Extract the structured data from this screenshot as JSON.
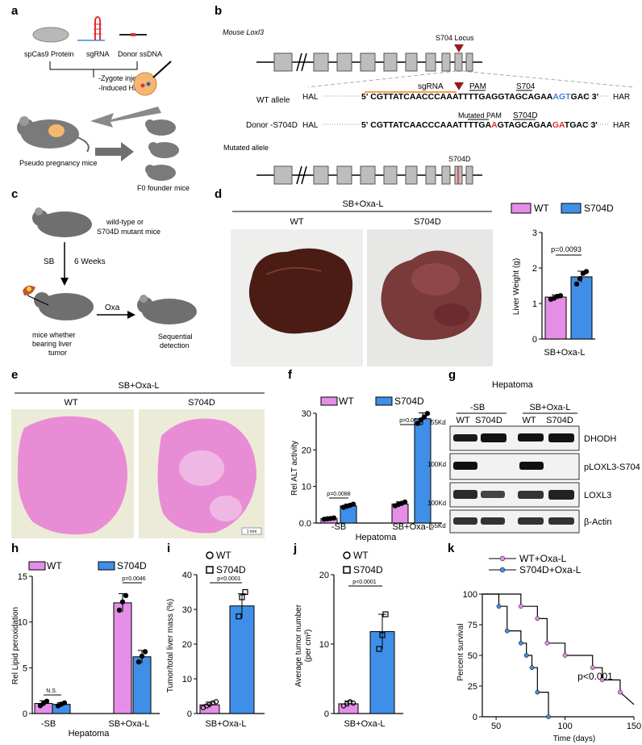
{
  "panel_labels": {
    "a": "a",
    "b": "b",
    "c": "c",
    "d": "d",
    "e": "e",
    "f": "f",
    "g": "g",
    "h": "h",
    "i": "i",
    "j": "j",
    "k": "k"
  },
  "panel_a": {
    "protein": "spCas9 Protein",
    "sgrna": "sgRNA",
    "donor": "Donor ssDNA",
    "step1": "-Zygote injection",
    "step2": "-Induced HDR",
    "pseudo": "Pseudo pregnancy mice",
    "founder": "F0 founder mice"
  },
  "panel_b": {
    "gene": "Mouse Loxl3",
    "locus": "S704 Locus",
    "sgrna": "sgRNA",
    "pam": "PAM",
    "s704": "S704",
    "wt_allele": "WT allele",
    "hal": "HAL",
    "har": "HAR",
    "wt_seq_prefix": "5' ",
    "wt_seq_main": "CGTTATCAACCCAAATTTTGAGGTAGCAGAA",
    "wt_seq_site": "AGT",
    "wt_seq_end": "GAC",
    "wt_seq_suffix": " 3'",
    "mutated_pam": "Mutated PAM",
    "s704d": "S704D",
    "donor_label": "Donor -S704D",
    "d_seq_a": "CGTTATCAACCCAAATTTTGA",
    "d_seq_b": "A",
    "d_seq_c": "GTAGCAGAA",
    "d_seq_d": "GA",
    "d_seq_e": "TGAC",
    "mutated_allele": "Mutated allele",
    "mut_site": "S704D"
  },
  "panel_c": {
    "mouse_type": "wild-type or",
    "mouse_type2": "S704D mutant mice",
    "sb": "SB",
    "weeks": "6 Weeks",
    "oxa": "Oxa",
    "tumor1": "mice whether",
    "tumor2": "bearing liver",
    "tumor3": "tumor",
    "seq1": "Sequential",
    "seq2": "detection"
  },
  "panel_d": {
    "header": "SB+Oxa-L",
    "wt": "WT",
    "s704d": "S704D",
    "legend_wt": "WT",
    "legend_s704d": "S704D",
    "ylabel": "Liver Weight  (g)",
    "xlabel": "SB+Oxa-L",
    "pval": "p=0.0093",
    "yticks": [
      "0",
      "1",
      "2",
      "3"
    ]
  },
  "panel_e": {
    "header": "SB+Oxa-L",
    "wt": "WT",
    "s704d": "S704D",
    "scale": "1 mm"
  },
  "panel_f": {
    "legend_wt": "WT",
    "legend_s704d": "S704D",
    "ylabel": "Rel ALT activity",
    "xlabel": "Hepatoma",
    "cat1": "-SB",
    "cat2": "SB+Oxa-L",
    "p1": "p=0.0088",
    "p2": "p=0.0014",
    "yticks": [
      "0.0",
      "10",
      "20",
      "30"
    ]
  },
  "panel_g": {
    "title": "Hepatoma",
    "grp1": "-SB",
    "grp2": "SB+Oxa-L",
    "lanes": [
      "WT",
      "S704D",
      "WT",
      "S704D"
    ],
    "mw": [
      "55Kd",
      "100Kd",
      "100Kd",
      "55Kd"
    ],
    "bands": [
      "DHODH",
      "pLOXL3-S704",
      "LOXL3",
      "β-Actin"
    ]
  },
  "panel_h": {
    "legend_wt": "WT",
    "legend_s704d": "S704D",
    "ylabel": "Rel Lipid peroxidation",
    "xlabel": "Hepatoma",
    "cat1": "-SB",
    "cat2": "SB+Oxa-L",
    "ns": "N.S.",
    "p": "p=0.0046",
    "yticks": [
      "0",
      "5",
      "10",
      "15"
    ]
  },
  "panel_i": {
    "legend_wt": "WT",
    "legend_s704d": "S704D",
    "ylabel": "Tumor/total liver mass (%)",
    "xlabel": "SB+Oxa-L",
    "p": "p<0.0001",
    "yticks": [
      "0",
      "10",
      "20",
      "30",
      "40"
    ]
  },
  "panel_j": {
    "legend_wt": "WT",
    "legend_s704d": "S704D",
    "ylabel": "Average tumor number",
    "ylabel2": "(per cm²)",
    "xlabel": "SB+Oxa-L",
    "p": "p<0.0001",
    "yticks": [
      "0",
      "10",
      "20"
    ]
  },
  "panel_k": {
    "legend_wt": "WT+Oxa-L",
    "legend_s704d": "S704D+Oxa-L",
    "ylabel": "Percent survival",
    "xlabel": "Time (days)",
    "p": "p<0.001",
    "yticks": [
      "0",
      "25",
      "50",
      "75",
      "100"
    ],
    "xticks": [
      "50",
      "100",
      "150"
    ]
  },
  "colors": {
    "wt": "#e58ee8",
    "s704d": "#3f8fe8",
    "mut": "#e03030",
    "site": "#4a7bd0",
    "sgrna": "#f0a050",
    "arrow": "#9b1b1b"
  },
  "chart_data": [
    {
      "type": "bar",
      "panel": "d",
      "categories": [
        "WT",
        "S704D"
      ],
      "values": [
        1.18,
        1.75
      ],
      "errors": [
        0.06,
        0.16
      ],
      "points": [
        [
          1.12,
          1.15,
          1.2,
          1.22
        ],
        [
          1.55,
          1.7,
          1.85,
          1.9
        ]
      ],
      "ylabel": "Liver Weight  (g)",
      "ylim": [
        0,
        3
      ]
    },
    {
      "type": "bar",
      "panel": "f",
      "categories": [
        "-SB",
        "SB+Oxa-L"
      ],
      "series": [
        {
          "name": "WT",
          "values": [
            1.2,
            5.2
          ],
          "errors": [
            0.2,
            0.6
          ]
        },
        {
          "name": "S704D",
          "values": [
            4.7,
            28.5
          ],
          "errors": [
            0.5,
            1.6
          ]
        }
      ],
      "ylabel": "Rel ALT activity",
      "ylim": [
        0,
        30
      ]
    },
    {
      "type": "bar",
      "panel": "h",
      "categories": [
        "-SB",
        "SB+Oxa-L"
      ],
      "series": [
        {
          "name": "WT",
          "values": [
            1.1,
            12.1
          ],
          "errors": [
            0.3,
            1.0
          ]
        },
        {
          "name": "S704D",
          "values": [
            1.0,
            6.2
          ],
          "errors": [
            0.2,
            0.7
          ]
        }
      ],
      "ylabel": "Rel Lipid peroxidation",
      "ylim": [
        0,
        15
      ]
    },
    {
      "type": "bar",
      "panel": "i",
      "categories": [
        "WT",
        "S704D"
      ],
      "values": [
        2.5,
        31
      ],
      "errors": [
        0.8,
        3.5
      ],
      "ylabel": "Tumor/total liver mass (%)",
      "ylim": [
        0,
        40
      ]
    },
    {
      "type": "bar",
      "panel": "j",
      "categories": [
        "WT",
        "S704D"
      ],
      "values": [
        1.4,
        11.8
      ],
      "errors": [
        0.4,
        2.5
      ],
      "ylabel": "Average tumor number",
      "ylim": [
        0,
        20
      ]
    },
    {
      "type": "line",
      "panel": "k",
      "xlabel": "Time (days)",
      "ylabel": "Percent survival",
      "xlim": [
        40,
        150
      ],
      "ylim": [
        0,
        100
      ],
      "series": [
        {
          "name": "WT+Oxa-L",
          "x": [
            40,
            68,
            68,
            80,
            80,
            87,
            87,
            100,
            100,
            120,
            120,
            127,
            127,
            140,
            140,
            150
          ],
          "y": [
            100,
            100,
            90,
            90,
            80,
            80,
            60,
            60,
            50,
            50,
            40,
            40,
            30,
            30,
            20,
            10
          ]
        },
        {
          "name": "S704D+Oxa-L",
          "x": [
            40,
            52,
            52,
            58,
            58,
            68,
            68,
            72,
            72,
            76,
            76,
            80,
            80,
            88,
            88
          ],
          "y": [
            100,
            100,
            90,
            90,
            70,
            70,
            60,
            60,
            50,
            50,
            40,
            40,
            20,
            20,
            0
          ]
        }
      ]
    }
  ]
}
